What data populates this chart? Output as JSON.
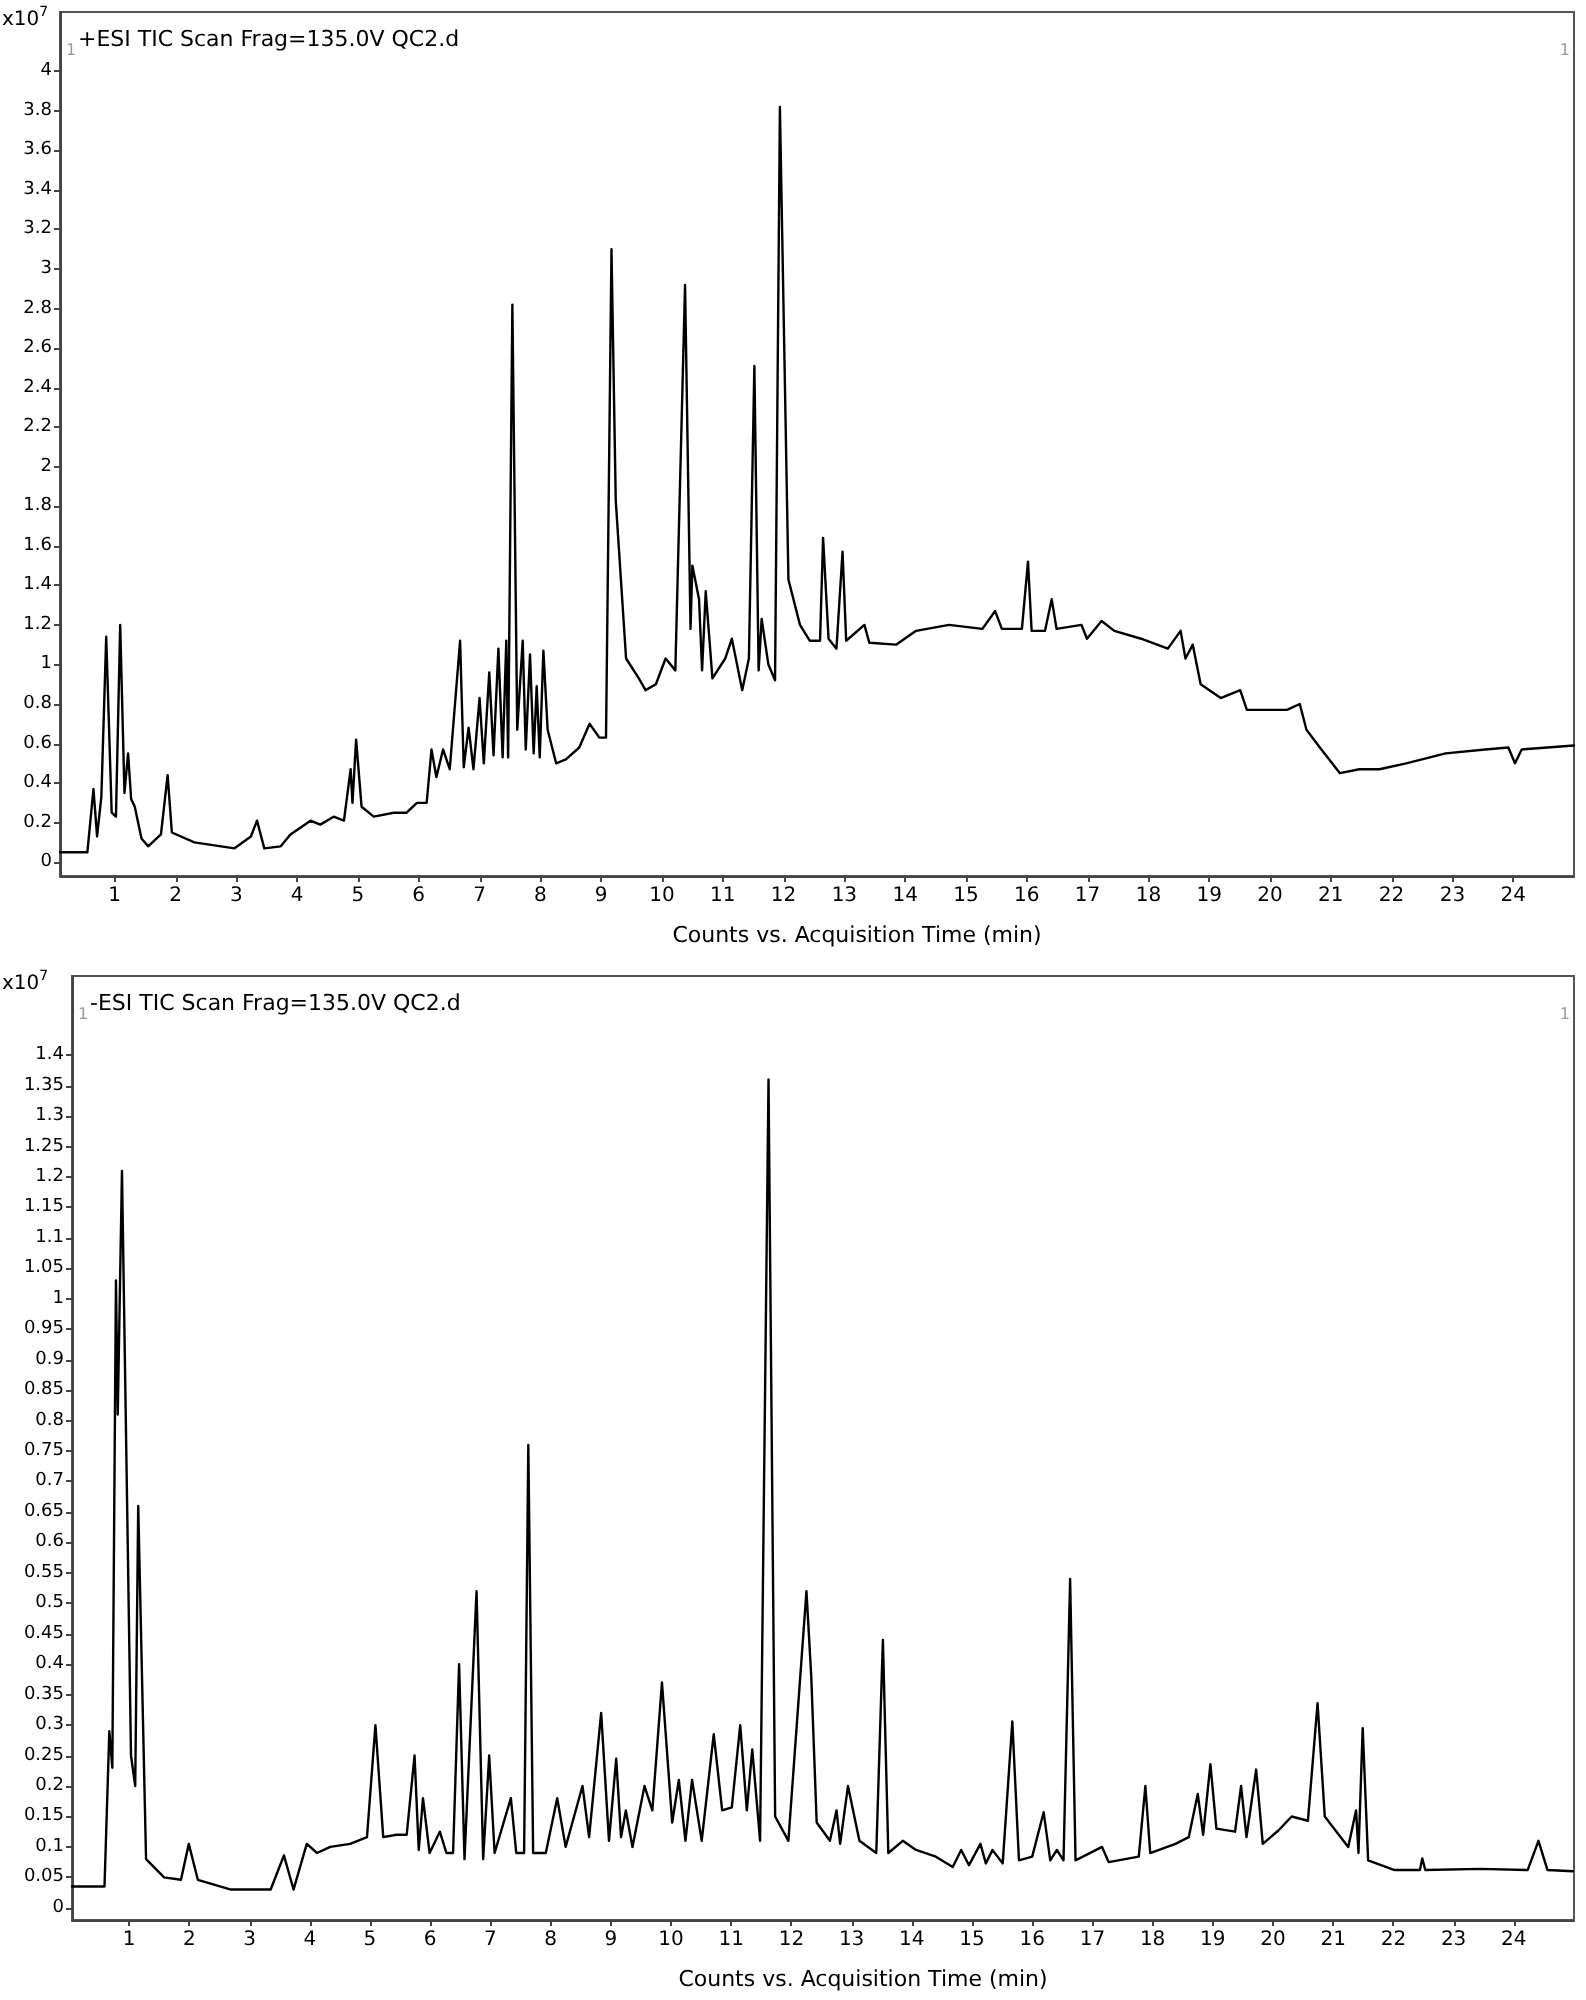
{
  "chart_data": [
    {
      "type": "line",
      "title": "+ESI TIC Scan Frag=135.0V QC2.d",
      "xlabel": "Counts vs. Acquisition Time (min)",
      "ylabel": "x10$^{7}$",
      "annotations": [
        "1",
        "1"
      ],
      "x": [
        0.1,
        0.55,
        0.65,
        0.71,
        0.78,
        0.86,
        0.95,
        1.02,
        1.09,
        1.16,
        1.22,
        1.27,
        1.33,
        1.44,
        1.55,
        1.76,
        1.87,
        1.94,
        2.31,
        2.53,
        2.97,
        3.24,
        3.34,
        3.46,
        3.73,
        3.89,
        4.22,
        4.38,
        4.6,
        4.77,
        4.88,
        4.91,
        4.97,
        5.06,
        5.26,
        5.59,
        5.8,
        5.97,
        6.13,
        6.21,
        6.29,
        6.4,
        6.51,
        6.68,
        6.74,
        6.82,
        6.9,
        7.0,
        7.07,
        7.16,
        7.23,
        7.31,
        7.38,
        7.44,
        7.47,
        7.54,
        7.62,
        7.71,
        7.76,
        7.83,
        7.89,
        7.94,
        7.99,
        8.05,
        8.12,
        8.26,
        8.42,
        8.64,
        8.81,
        8.97,
        9.08,
        9.17,
        9.24,
        9.41,
        9.62,
        9.73,
        9.9,
        10.06,
        10.22,
        10.38,
        10.47,
        10.5,
        10.61,
        10.66,
        10.72,
        10.83,
        11.04,
        11.15,
        11.32,
        11.43,
        11.52,
        11.59,
        11.64,
        11.75,
        11.86,
        11.94,
        12.08,
        12.27,
        12.43,
        12.6,
        12.65,
        12.74,
        12.87,
        12.97,
        13.03,
        13.33,
        13.41,
        13.85,
        14.18,
        14.72,
        15.27,
        15.48,
        15.59,
        15.92,
        16.02,
        16.08,
        16.3,
        16.41,
        16.49,
        16.9,
        16.99,
        17.23,
        17.44,
        17.88,
        18.32,
        18.53,
        18.61,
        18.73,
        18.86,
        19.19,
        19.51,
        19.62,
        19.95,
        20.28,
        20.49,
        20.6,
        20.82,
        21.15,
        21.47,
        21.8,
        22.24,
        22.89,
        23.54,
        23.92,
        24.03,
        24.14,
        25.0
      ],
      "series": [
        {
          "color": "#000000",
          "values": [
            0.05,
            0.05,
            0.37,
            0.13,
            0.33,
            1.14,
            0.25,
            0.23,
            1.2,
            0.35,
            0.55,
            0.32,
            0.28,
            0.12,
            0.08,
            0.14,
            0.44,
            0.15,
            0.1,
            0.09,
            0.07,
            0.13,
            0.21,
            0.07,
            0.08,
            0.14,
            0.21,
            0.19,
            0.23,
            0.21,
            0.47,
            0.3,
            0.62,
            0.28,
            0.23,
            0.25,
            0.25,
            0.3,
            0.3,
            0.57,
            0.43,
            0.57,
            0.47,
            1.12,
            0.48,
            0.68,
            0.47,
            0.83,
            0.5,
            0.96,
            0.54,
            1.08,
            0.53,
            1.12,
            0.53,
            2.82,
            0.67,
            1.12,
            0.57,
            1.05,
            0.55,
            0.89,
            0.53,
            1.07,
            0.67,
            0.5,
            0.52,
            0.58,
            0.7,
            0.63,
            0.63,
            3.1,
            1.83,
            1.03,
            0.93,
            0.87,
            0.9,
            1.03,
            0.97,
            2.92,
            1.18,
            1.5,
            1.33,
            0.97,
            1.37,
            0.93,
            1.03,
            1.13,
            0.87,
            1.03,
            2.51,
            0.97,
            1.23,
            1.0,
            0.92,
            3.82,
            1.43,
            1.2,
            1.12,
            1.12,
            1.64,
            1.13,
            1.08,
            1.57,
            1.12,
            1.2,
            1.11,
            1.1,
            1.17,
            1.2,
            1.18,
            1.27,
            1.18,
            1.18,
            1.52,
            1.17,
            1.17,
            1.33,
            1.18,
            1.2,
            1.13,
            1.22,
            1.17,
            1.13,
            1.08,
            1.17,
            1.03,
            1.1,
            0.9,
            0.83,
            0.87,
            0.77,
            0.77,
            0.77,
            0.8,
            0.67,
            0.58,
            0.45,
            0.47,
            0.47,
            0.5,
            0.55,
            0.57,
            0.58,
            0.5,
            0.57,
            0.59
          ]
        }
      ],
      "xlim": [
        0.1,
        25
      ],
      "xticks": [
        1,
        2,
        3,
        4,
        5,
        6,
        7,
        8,
        9,
        10,
        11,
        12,
        13,
        14,
        15,
        16,
        17,
        18,
        19,
        20,
        21,
        22,
        23,
        24
      ],
      "ylim": [
        -0.07,
        4.3
      ],
      "yticks": [
        0,
        0.2,
        0.4,
        0.6,
        0.8,
        1,
        1.2,
        1.4,
        1.6,
        1.8,
        2,
        2.2,
        2.4,
        2.6,
        2.8,
        3,
        3.2,
        3.4,
        3.6,
        3.8,
        4
      ],
      "marker": "none",
      "line_style": "solid"
    },
    {
      "type": "line",
      "title": "-ESI TIC Scan Frag=135.0V QC2.d",
      "xlabel": "Counts vs. Acquisition Time (min)",
      "ylabel": "x10$^{7}$",
      "annotations": [
        "1",
        "1"
      ],
      "x": [
        0.05,
        0.59,
        0.67,
        0.72,
        0.78,
        0.81,
        0.88,
        1.03,
        1.1,
        1.15,
        1.28,
        1.58,
        1.86,
        1.99,
        2.14,
        2.69,
        3.35,
        3.57,
        3.73,
        3.95,
        4.12,
        4.34,
        4.67,
        4.95,
        5.09,
        5.22,
        5.44,
        5.61,
        5.74,
        5.81,
        5.88,
        5.99,
        6.16,
        6.27,
        6.38,
        6.48,
        6.57,
        6.77,
        6.88,
        6.98,
        7.07,
        7.34,
        7.43,
        7.56,
        7.63,
        7.71,
        7.92,
        8.11,
        8.25,
        8.53,
        8.64,
        8.84,
        8.97,
        9.09,
        9.17,
        9.25,
        9.36,
        9.56,
        9.69,
        9.85,
        10.02,
        10.13,
        10.24,
        10.35,
        10.51,
        10.71,
        10.85,
        11.01,
        11.15,
        11.26,
        11.35,
        11.48,
        11.62,
        11.73,
        11.95,
        12.25,
        12.33,
        12.42,
        12.64,
        12.75,
        12.81,
        12.94,
        13.13,
        13.41,
        13.52,
        13.61,
        13.85,
        14.07,
        14.4,
        14.68,
        14.82,
        14.95,
        15.14,
        15.23,
        15.34,
        15.51,
        15.67,
        15.78,
        16.0,
        16.19,
        16.3,
        16.41,
        16.52,
        16.63,
        16.72,
        17.16,
        17.27,
        17.77,
        17.88,
        17.96,
        18.38,
        18.6,
        18.75,
        18.84,
        18.96,
        19.06,
        19.37,
        19.47,
        19.56,
        19.72,
        19.83,
        20.09,
        20.31,
        20.58,
        20.74,
        20.86,
        21.25,
        21.38,
        21.42,
        21.49,
        21.58,
        22.02,
        22.44,
        22.48,
        22.53,
        23.45,
        24.23,
        24.41,
        24.56,
        24.98
      ],
      "series": [
        {
          "color": "#000000",
          "values": [
            0.035,
            0.035,
            0.29,
            0.23,
            1.03,
            0.81,
            1.21,
            0.25,
            0.2,
            0.66,
            0.08,
            0.05,
            0.046,
            0.105,
            0.046,
            0.03,
            0.03,
            0.086,
            0.03,
            0.105,
            0.09,
            0.1,
            0.105,
            0.116,
            0.3,
            0.116,
            0.12,
            0.12,
            0.25,
            0.095,
            0.18,
            0.09,
            0.125,
            0.09,
            0.09,
            0.4,
            0.08,
            0.52,
            0.08,
            0.25,
            0.09,
            0.18,
            0.09,
            0.09,
            0.76,
            0.09,
            0.09,
            0.18,
            0.1,
            0.2,
            0.116,
            0.32,
            0.11,
            0.245,
            0.116,
            0.16,
            0.1,
            0.2,
            0.16,
            0.37,
            0.14,
            0.21,
            0.11,
            0.21,
            0.11,
            0.285,
            0.16,
            0.165,
            0.3,
            0.16,
            0.26,
            0.11,
            1.36,
            0.15,
            0.11,
            0.52,
            0.38,
            0.14,
            0.11,
            0.16,
            0.105,
            0.2,
            0.11,
            0.09,
            0.44,
            0.09,
            0.11,
            0.095,
            0.084,
            0.067,
            0.095,
            0.07,
            0.105,
            0.073,
            0.095,
            0.073,
            0.306,
            0.078,
            0.084,
            0.157,
            0.078,
            0.095,
            0.078,
            0.54,
            0.078,
            0.1,
            0.075,
            0.084,
            0.2,
            0.09,
            0.105,
            0.116,
            0.187,
            0.12,
            0.236,
            0.13,
            0.125,
            0.2,
            0.116,
            0.227,
            0.105,
            0.127,
            0.15,
            0.143,
            0.336,
            0.15,
            0.1,
            0.16,
            0.09,
            0.295,
            0.078,
            0.062,
            0.062,
            0.081,
            0.062,
            0.064,
            0.062,
            0.11,
            0.062,
            0.06
          ]
        }
      ],
      "xlim": [
        0.05,
        25
      ],
      "xticks": [
        1,
        2,
        3,
        4,
        5,
        6,
        7,
        8,
        9,
        10,
        11,
        12,
        13,
        14,
        15,
        16,
        17,
        18,
        19,
        20,
        21,
        22,
        23,
        24
      ],
      "ylim": [
        -0.02,
        1.53
      ],
      "yticks": [
        0,
        0.05,
        0.1,
        0.15,
        0.2,
        0.25,
        0.3,
        0.35,
        0.4,
        0.45,
        0.5,
        0.55,
        0.6,
        0.65,
        0.7,
        0.75,
        0.8,
        0.85,
        0.9,
        0.95,
        1,
        1.05,
        1.1,
        1.15,
        1.2,
        1.25,
        1.3,
        1.35,
        1.4
      ],
      "marker": "none",
      "line_style": "solid"
    }
  ]
}
